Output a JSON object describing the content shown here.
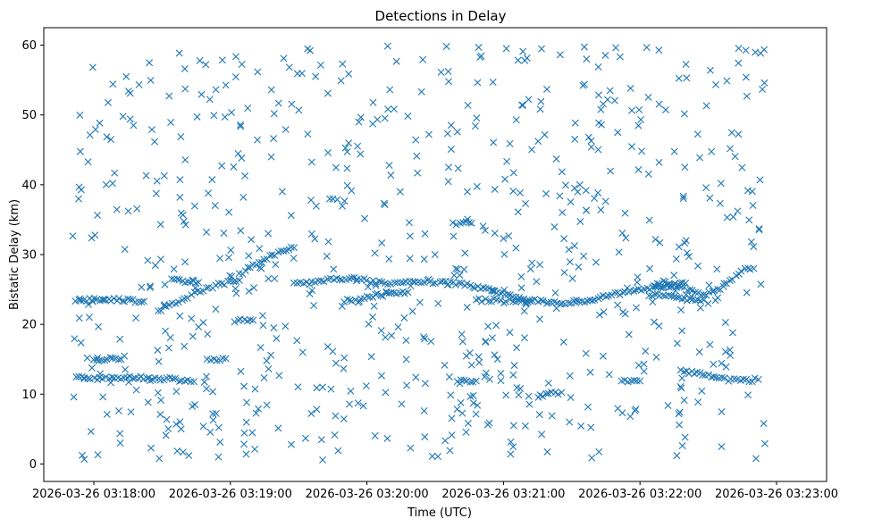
{
  "chart_data": {
    "type": "scatter",
    "title": "Detections in Delay",
    "xlabel": "Time (UTC)",
    "ylabel": "Bistatic Delay (km)",
    "marker": "x",
    "color": "#1f77b4",
    "grid": false,
    "x_unit": "seconds after 2026-03-26 03:18:00",
    "xlim": [
      -22,
      322
    ],
    "ylim": [
      -2.5,
      62.5
    ],
    "x_ticks": [
      {
        "value": 0,
        "label": "2026-03-26 03:18:00"
      },
      {
        "value": 60,
        "label": "2026-03-26 03:19:00"
      },
      {
        "value": 120,
        "label": "2026-03-26 03:20:00"
      },
      {
        "value": 180,
        "label": "2026-03-26 03:21:00"
      },
      {
        "value": 240,
        "label": "2026-03-26 03:22:00"
      },
      {
        "value": 300,
        "label": "2026-03-26 03:23:00"
      }
    ],
    "y_ticks": [
      {
        "value": 0,
        "label": "0"
      },
      {
        "value": 10,
        "label": "10"
      },
      {
        "value": 20,
        "label": "20"
      },
      {
        "value": 30,
        "label": "30"
      },
      {
        "value": 40,
        "label": "40"
      },
      {
        "value": 50,
        "label": "50"
      },
      {
        "value": 60,
        "label": "60"
      }
    ],
    "time_range_s": [
      -10,
      295
    ],
    "clutter_points": 720,
    "tracks": [
      {
        "name": "track-1",
        "points": [
          [
            -8,
            12.3
          ],
          [
            -4,
            12.3
          ],
          [
            0,
            12.2
          ],
          [
            4,
            12.4
          ],
          [
            8,
            12.3
          ],
          [
            13,
            12.1
          ],
          [
            17,
            12.4
          ],
          [
            22,
            12.3
          ],
          [
            27,
            12.1
          ],
          [
            32,
            12.2
          ],
          [
            36,
            12.1
          ],
          [
            40,
            12.0
          ],
          [
            44,
            11.8
          ]
        ]
      },
      {
        "name": "track-2",
        "points": [
          [
            -8,
            23.5
          ],
          [
            -2,
            23.5
          ],
          [
            4,
            23.5
          ],
          [
            10,
            23.6
          ],
          [
            16,
            23.4
          ],
          [
            22,
            23.3
          ]
        ]
      },
      {
        "name": "track-3",
        "points": [
          [
            28,
            22.0
          ],
          [
            32,
            22.6
          ],
          [
            36,
            23.2
          ],
          [
            40,
            23.8
          ],
          [
            44,
            24.4
          ],
          [
            48,
            24.9
          ],
          [
            52,
            25.4
          ],
          [
            56,
            25.8
          ],
          [
            60,
            26.1
          ],
          [
            64,
            26.3
          ]
        ]
      },
      {
        "name": "track-4",
        "points": [
          [
            34,
            26.3
          ],
          [
            40,
            26.2
          ],
          [
            46,
            26.0
          ]
        ]
      },
      {
        "name": "track-5",
        "points": [
          [
            64,
            27.2
          ],
          [
            70,
            28.4
          ],
          [
            76,
            29.5
          ],
          [
            82,
            30.4
          ],
          [
            88,
            31.0
          ]
        ]
      },
      {
        "name": "track-6",
        "points": [
          [
            62,
            20.6
          ],
          [
            66,
            20.5
          ],
          [
            70,
            20.6
          ]
        ]
      },
      {
        "name": "track-7",
        "points": [
          [
            88,
            25.8
          ],
          [
            96,
            26.0
          ],
          [
            104,
            26.4
          ],
          [
            112,
            26.6
          ],
          [
            120,
            26.3
          ],
          [
            128,
            25.8
          ],
          [
            136,
            26.0
          ],
          [
            144,
            26.2
          ],
          [
            150,
            25.9
          ]
        ]
      },
      {
        "name": "track-8",
        "points": [
          [
            110,
            23.4
          ],
          [
            116,
            23.3
          ],
          [
            120,
            24.0
          ],
          [
            126,
            24.2
          ],
          [
            132,
            24.5
          ],
          [
            138,
            24.6
          ]
        ]
      },
      {
        "name": "track-9",
        "points": [
          [
            158,
            34.5
          ],
          [
            162,
            34.6
          ],
          [
            166,
            34.5
          ]
        ]
      },
      {
        "name": "track-10",
        "points": [
          [
            152,
            26.0
          ],
          [
            158,
            25.9
          ],
          [
            164,
            25.7
          ],
          [
            170,
            25.2
          ],
          [
            176,
            24.7
          ],
          [
            182,
            24.1
          ],
          [
            188,
            23.6
          ],
          [
            194,
            23.4
          ],
          [
            200,
            23.2
          ],
          [
            206,
            23.1
          ],
          [
            212,
            23.2
          ],
          [
            218,
            23.5
          ],
          [
            224,
            24.0
          ],
          [
            230,
            24.4
          ],
          [
            236,
            24.7
          ],
          [
            242,
            25.0
          ],
          [
            248,
            25.3
          ],
          [
            254,
            25.6
          ],
          [
            260,
            25.9
          ]
        ]
      },
      {
        "name": "track-11",
        "points": [
          [
            168,
            23.5
          ],
          [
            172,
            23.4
          ],
          [
            176,
            23.5
          ],
          [
            180,
            23.3
          ],
          [
            184,
            23.4
          ],
          [
            188,
            23.2
          ],
          [
            192,
            23.3
          ]
        ]
      },
      {
        "name": "track-12",
        "points": [
          [
            246,
            25.5
          ],
          [
            250,
            26.2
          ],
          [
            256,
            25.5
          ],
          [
            262,
            24.8
          ],
          [
            268,
            24.2
          ],
          [
            274,
            24.8
          ],
          [
            278,
            26.0
          ],
          [
            282,
            26.8
          ],
          [
            286,
            27.8
          ],
          [
            290,
            28.0
          ]
        ]
      },
      {
        "name": "track-13",
        "points": [
          [
            244,
            24.0
          ],
          [
            250,
            24.2
          ],
          [
            256,
            23.8
          ],
          [
            262,
            23.6
          ],
          [
            268,
            23.5
          ]
        ]
      },
      {
        "name": "track-14",
        "points": [
          [
            258,
            13.3
          ],
          [
            264,
            13.0
          ],
          [
            270,
            12.6
          ],
          [
            276,
            12.3
          ],
          [
            280,
            12.0
          ],
          [
            284,
            12.2
          ],
          [
            288,
            12.0
          ],
          [
            292,
            12.1
          ]
        ]
      },
      {
        "name": "track-15",
        "points": [
          [
            232,
            11.8
          ],
          [
            236,
            11.8
          ],
          [
            240,
            11.9
          ]
        ]
      },
      {
        "name": "track-16",
        "points": [
          [
            160,
            12.0
          ],
          [
            164,
            12.0
          ],
          [
            168,
            11.9
          ]
        ]
      },
      {
        "name": "track-17",
        "points": [
          [
            196,
            9.8
          ],
          [
            200,
            10.2
          ],
          [
            204,
            10.0
          ]
        ]
      },
      {
        "name": "track-18",
        "points": [
          [
            0,
            15.0
          ],
          [
            6,
            15.0
          ],
          [
            12,
            15.0
          ]
        ]
      },
      {
        "name": "track-19",
        "points": [
          [
            50,
            15.0
          ],
          [
            54,
            14.9
          ],
          [
            58,
            15.1
          ]
        ]
      }
    ]
  }
}
